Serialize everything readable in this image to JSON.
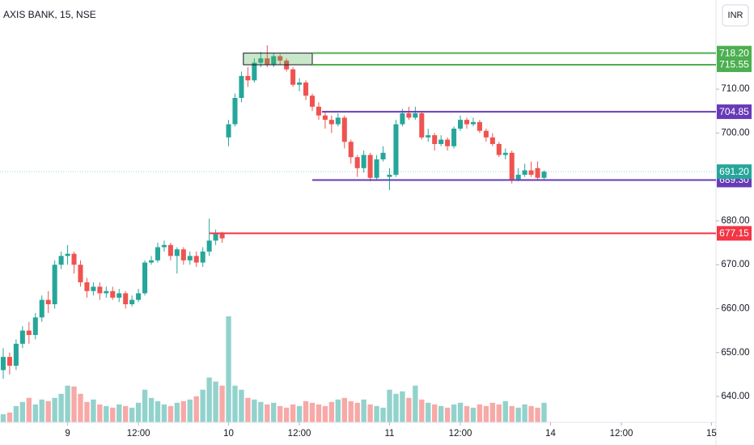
{
  "chart_data": {
    "type": "candlestick",
    "title": "AXIS BANK, 15, NSE",
    "currency": "INR",
    "up_color": "#26a69a",
    "down_color": "#ef5350",
    "open": [
      646,
      649,
      647,
      652,
      655,
      654,
      658,
      662,
      661,
      670,
      672,
      672.5,
      670,
      666,
      664,
      665,
      663.5,
      664,
      662.5,
      663.5,
      661,
      662,
      663.5,
      670.5,
      671,
      674,
      674.5,
      672,
      673.5,
      671,
      672,
      670.5,
      673,
      675.5,
      677,
      699,
      702,
      708,
      713,
      712,
      716,
      717,
      715.5,
      717.5,
      716.5,
      714.5,
      711,
      711.5,
      708.5,
      706,
      704,
      703,
      702,
      703.5,
      698,
      694.5,
      692,
      695,
      689.8,
      694,
      690,
      690.5,
      702,
      704.5,
      703.5,
      704.5,
      699,
      699.5,
      697.5,
      698.5,
      697,
      701,
      703,
      702,
      702.5,
      700.5,
      699,
      697.5,
      695,
      695.5,
      689.5,
      690.5,
      691.5,
      692,
      689.8
    ],
    "high": [
      651,
      650,
      653,
      656,
      657,
      659,
      663,
      664,
      671,
      673,
      674.5,
      673,
      671,
      667,
      666,
      666,
      665,
      665,
      664.5,
      664,
      663,
      664.5,
      671,
      672,
      675,
      675.5,
      675,
      674,
      674,
      673,
      673,
      674,
      680.5,
      678,
      677.5,
      703,
      709,
      714,
      715,
      717,
      718.5,
      720,
      718.2,
      718,
      717,
      715,
      712.5,
      712,
      709,
      707,
      705,
      704,
      704.5,
      704,
      698.5,
      695,
      696,
      695.5,
      695,
      697,
      692,
      703,
      705.5,
      706,
      706,
      705,
      701,
      700,
      699.5,
      699,
      701.5,
      704,
      703.5,
      703.5,
      703,
      701,
      700,
      698,
      696.5,
      696,
      692,
      693,
      693.5,
      693.5,
      691.5
    ],
    "low": [
      644,
      645,
      646,
      651,
      652,
      653,
      657,
      659,
      660,
      669,
      670,
      668,
      665,
      662.5,
      663,
      662,
      662.5,
      662,
      661.5,
      660,
      660.5,
      661.5,
      663,
      670,
      670.5,
      673,
      671,
      668,
      670,
      670,
      669.5,
      669.5,
      672,
      674.5,
      675,
      697,
      701.5,
      707,
      710.5,
      711.5,
      715,
      715,
      715,
      715.5,
      714,
      710.5,
      709.5,
      707.5,
      705,
      703,
      701,
      700,
      701.5,
      696.5,
      693,
      690,
      691,
      689,
      689.3,
      693.5,
      687,
      690,
      701.5,
      703,
      703,
      698.5,
      698,
      696,
      697,
      696,
      696.5,
      700.5,
      701,
      701.5,
      700,
      698,
      697,
      694.5,
      694,
      688.5,
      689,
      690,
      690,
      689.3,
      689.5
    ],
    "close": [
      649,
      647,
      652,
      655,
      654,
      658,
      662,
      661,
      670,
      672,
      672.5,
      670,
      666,
      664,
      665,
      663.5,
      664,
      662.5,
      663.5,
      661,
      662,
      663.5,
      670.5,
      671,
      674,
      674.5,
      672,
      673.5,
      671,
      672,
      670.5,
      673,
      675.5,
      677,
      676,
      702,
      708,
      713,
      712,
      716,
      717,
      715.5,
      717.5,
      716.5,
      714.5,
      711,
      711.5,
      708.5,
      706,
      704,
      703,
      702,
      703.5,
      698,
      694.5,
      692,
      695,
      689.8,
      694,
      695.5,
      690.5,
      702,
      704.5,
      703.5,
      704.5,
      699,
      699.5,
      697.5,
      698.5,
      697,
      701,
      703,
      702,
      702.5,
      700.5,
      699,
      697.5,
      695,
      695.5,
      689.5,
      690.5,
      691.5,
      690.5,
      689.8,
      691.2
    ],
    "volume": [
      10,
      12,
      20,
      25,
      30,
      22,
      28,
      26,
      30,
      35,
      45,
      44,
      35,
      25,
      28,
      22,
      20,
      18,
      22,
      20,
      18,
      24,
      40,
      30,
      26,
      22,
      20,
      24,
      26,
      28,
      32,
      40,
      55,
      50,
      45,
      130,
      45,
      40,
      30,
      28,
      25,
      22,
      24,
      20,
      18,
      22,
      20,
      26,
      24,
      22,
      20,
      25,
      28,
      30,
      26,
      24,
      28,
      22,
      20,
      18,
      40,
      35,
      38,
      30,
      45,
      28,
      24,
      22,
      20,
      18,
      22,
      24,
      20,
      18,
      22,
      20,
      24,
      22,
      26,
      20,
      18,
      22,
      20,
      18,
      24
    ],
    "xlim": [
      -0.5,
      110.7
    ],
    "xticks": [
      {
        "value": 10,
        "label": "9"
      },
      {
        "value": 21,
        "label": "12:00"
      },
      {
        "value": 35,
        "label": "10"
      },
      {
        "value": 46,
        "label": "12:00"
      },
      {
        "value": 60,
        "label": "11"
      },
      {
        "value": 71,
        "label": "12:00"
      },
      {
        "value": 85,
        "label": "14"
      },
      {
        "value": 96,
        "label": "12:00"
      },
      {
        "value": 110,
        "label": "15"
      }
    ],
    "ylim": [
      634.1,
      730.3
    ],
    "yticks": [
      {
        "value": 640,
        "label": "640.00"
      },
      {
        "value": 650,
        "label": "650.00"
      },
      {
        "value": 660,
        "label": "660.00"
      },
      {
        "value": 670,
        "label": "670.00"
      },
      {
        "value": 680,
        "label": "680.00"
      },
      {
        "value": 700,
        "label": "700.00"
      },
      {
        "value": 710,
        "label": "710.00"
      }
    ],
    "zone": {
      "x_start": 37.3,
      "x_end": 48,
      "top": 718.2,
      "bottom": 715.55,
      "color": "#4caf50"
    },
    "levels": [
      {
        "value": 718.2,
        "label": "718.20",
        "color": "#4caf50",
        "x_start": 48
      },
      {
        "value": 715.55,
        "label": "715.55",
        "color": "#4caf50",
        "x_start": 48
      },
      {
        "value": 704.85,
        "label": "704.85",
        "color": "#673ab7",
        "x_start": 49.5
      },
      {
        "value": 689.3,
        "label": "689.30",
        "color": "#673ab7",
        "x_start": 48
      },
      {
        "value": 677.15,
        "label": "677.15",
        "color": "#f23645",
        "x_start": 32
      }
    ],
    "last_price": {
      "value": 691.2,
      "label": "691.20",
      "color": "#26a69a"
    }
  }
}
